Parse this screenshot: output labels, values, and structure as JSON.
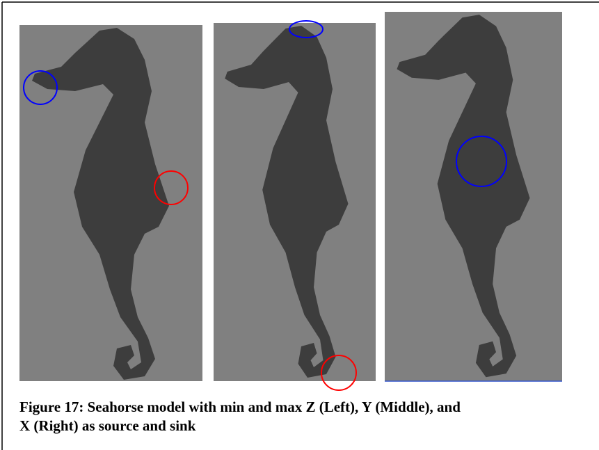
{
  "figure": {
    "caption": [
      "Figure 17: Seahorse model with min and max Z (Left), Y (Middle), and",
      "X (Right) as source and sink"
    ]
  }
}
